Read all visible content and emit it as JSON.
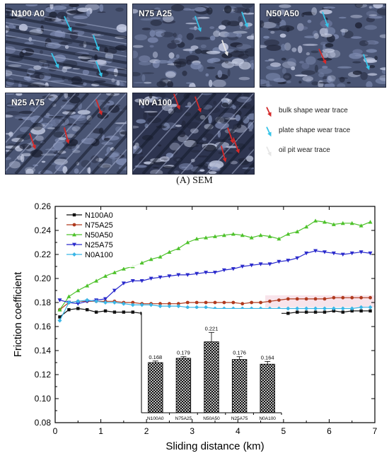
{
  "micrographs": [
    {
      "label": "N100 A0",
      "arrows": [
        "plate",
        "plate",
        "plate",
        "plate"
      ]
    },
    {
      "label": "N75 A25",
      "arrows": [
        "plate",
        "plate",
        "oil"
      ]
    },
    {
      "label": "N50 A50",
      "arrows": [
        "plate",
        "bulk",
        "plate"
      ]
    },
    {
      "label": "N25 A75",
      "arrows": [
        "bulk",
        "bulk",
        "bulk"
      ]
    },
    {
      "label": "N0 A100",
      "arrows": [
        "bulk",
        "bulk",
        "bulk",
        "bulk",
        "bulk"
      ]
    }
  ],
  "arrow_legend": [
    {
      "kind": "bulk",
      "label": "bulk shape wear trace",
      "color": "#d42a2a"
    },
    {
      "kind": "plate",
      "label": "plate shape wear trace",
      "color": "#35c4e8"
    },
    {
      "kind": "oil",
      "label": "oil pit wear trace",
      "color": "#e6e6e6"
    }
  ],
  "caption": {
    "prefix": "(A)",
    "text": " SEM"
  },
  "chart_data": [
    {
      "type": "line",
      "xlabel": "Sliding distance (km)",
      "ylabel": "Friction coefficient",
      "xlim": [
        0,
        7
      ],
      "ylim": [
        0.08,
        0.26
      ],
      "xticks": [
        0,
        1,
        2,
        3,
        4,
        5,
        6,
        7
      ],
      "yticks": [
        0.08,
        0.1,
        0.12,
        0.14,
        0.16,
        0.18,
        0.2,
        0.22,
        0.24,
        0.26
      ],
      "ytick_labels": [
        "0.08",
        "0.10",
        "0.12",
        "0.14",
        "0.16",
        "0.18",
        "0.20",
        "0.22",
        "0.24",
        "0.26"
      ],
      "legend_position": "top-left",
      "grid": false,
      "x": [
        0.1,
        0.3,
        0.5,
        0.7,
        0.9,
        1.1,
        1.3,
        1.5,
        1.7,
        1.9,
        2.1,
        2.3,
        2.5,
        2.7,
        2.9,
        3.1,
        3.3,
        3.5,
        3.7,
        3.9,
        4.1,
        4.3,
        4.5,
        4.7,
        4.9,
        5.1,
        5.3,
        5.5,
        5.7,
        5.9,
        6.1,
        6.3,
        6.5,
        6.7,
        6.9
      ],
      "series": [
        {
          "name": "N100A0",
          "color": "#111111",
          "marker": "square",
          "values": [
            0.168,
            0.174,
            0.175,
            0.174,
            0.172,
            0.173,
            0.172,
            0.172,
            0.172,
            0.171,
            0.171,
            0.17,
            0.17,
            0.171,
            0.17,
            0.17,
            0.171,
            0.17,
            0.17,
            0.171,
            0.171,
            0.171,
            0.171,
            0.171,
            0.171,
            0.171,
            0.172,
            0.172,
            0.172,
            0.172,
            0.173,
            0.172,
            0.173,
            0.173,
            0.173
          ]
        },
        {
          "name": "N75A25",
          "color": "#b03a1e",
          "marker": "circle",
          "values": [
            0.174,
            0.18,
            0.181,
            0.181,
            0.181,
            0.181,
            0.181,
            0.18,
            0.18,
            0.179,
            0.179,
            0.179,
            0.179,
            0.179,
            0.18,
            0.18,
            0.18,
            0.18,
            0.18,
            0.18,
            0.179,
            0.18,
            0.18,
            0.181,
            0.182,
            0.183,
            0.183,
            0.183,
            0.183,
            0.183,
            0.184,
            0.184,
            0.184,
            0.184,
            0.184
          ]
        },
        {
          "name": "N50A50",
          "color": "#4ec22b",
          "marker": "triangle-up",
          "values": [
            0.174,
            0.185,
            0.19,
            0.194,
            0.198,
            0.202,
            0.205,
            0.208,
            0.21,
            0.213,
            0.216,
            0.218,
            0.222,
            0.225,
            0.23,
            0.233,
            0.234,
            0.235,
            0.236,
            0.237,
            0.236,
            0.234,
            0.236,
            0.235,
            0.233,
            0.237,
            0.239,
            0.243,
            0.248,
            0.247,
            0.245,
            0.246,
            0.246,
            0.244,
            0.247
          ]
        },
        {
          "name": "N25A75",
          "color": "#2a2acc",
          "marker": "triangle-down",
          "values": [
            0.182,
            0.18,
            0.179,
            0.181,
            0.182,
            0.183,
            0.19,
            0.196,
            0.198,
            0.198,
            0.2,
            0.201,
            0.202,
            0.203,
            0.203,
            0.204,
            0.205,
            0.205,
            0.207,
            0.208,
            0.21,
            0.211,
            0.212,
            0.212,
            0.214,
            0.215,
            0.217,
            0.221,
            0.223,
            0.222,
            0.221,
            0.22,
            0.221,
            0.222,
            0.221
          ]
        },
        {
          "name": "N0A100",
          "color": "#3bb6e6",
          "marker": "diamond",
          "values": [
            0.165,
            0.18,
            0.181,
            0.182,
            0.181,
            0.18,
            0.18,
            0.179,
            0.178,
            0.178,
            0.178,
            0.177,
            0.177,
            0.177,
            0.176,
            0.176,
            0.176,
            0.175,
            0.175,
            0.175,
            0.175,
            0.175,
            0.175,
            0.175,
            0.175,
            0.175,
            0.175,
            0.175,
            0.175,
            0.175,
            0.175,
            0.175,
            0.175,
            0.176,
            0.176
          ]
        }
      ]
    },
    {
      "type": "bar",
      "inset": true,
      "categories": [
        "N100A0",
        "N75A25",
        "N50A50",
        "N25A75",
        "N0A100"
      ],
      "values": [
        0.168,
        0.179,
        0.221,
        0.176,
        0.164
      ],
      "value_labels": [
        "0.168",
        "0.179",
        "0.221",
        "0.176",
        "0.164"
      ],
      "error": [
        0.004,
        0.004,
        0.024,
        0.007,
        0.007
      ],
      "ylim": [
        0.04,
        0.26
      ],
      "bar_pattern": "cross-hatch"
    }
  ]
}
